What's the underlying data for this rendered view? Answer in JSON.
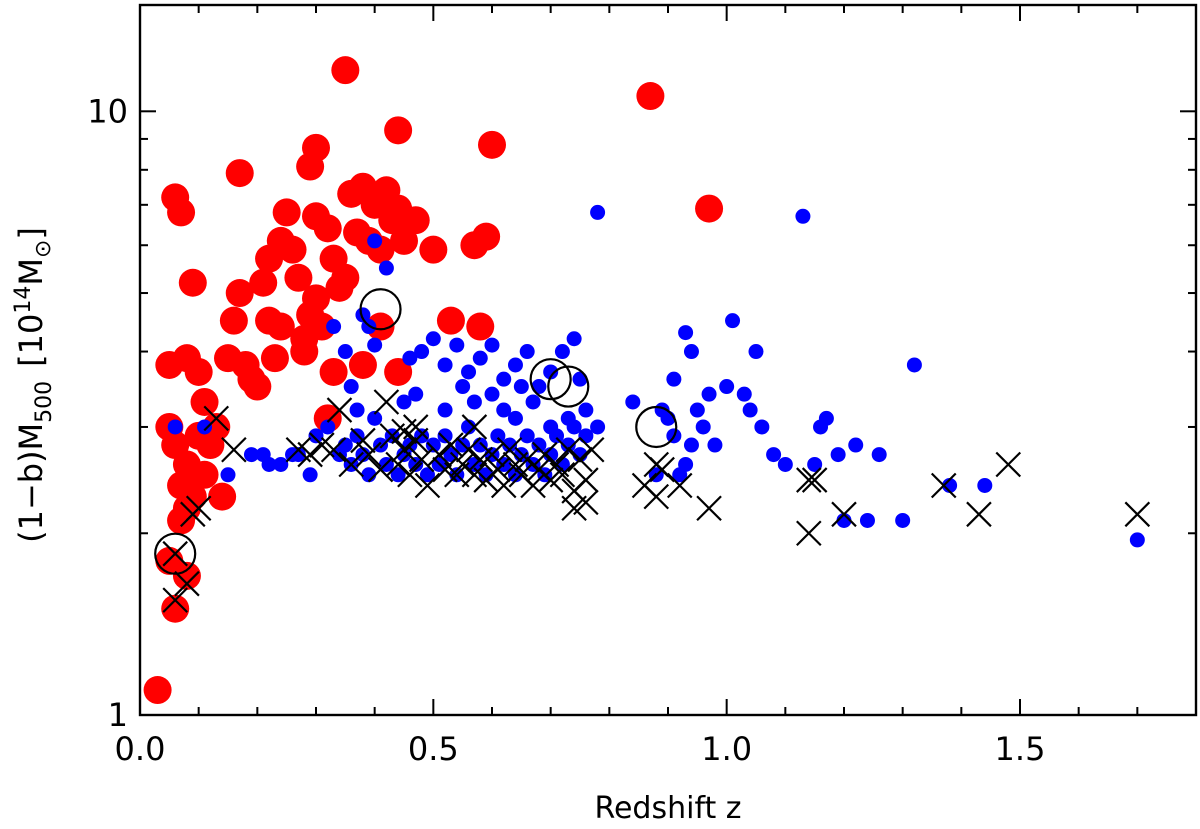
{
  "chart_data": {
    "type": "scatter",
    "title": "",
    "xlabel": "Redshift z",
    "ylabel_prefix": "(1−b)M",
    "ylabel_sub": "500",
    "ylabel_unit_open": "[10",
    "ylabel_unit_sup": "14",
    "ylabel_unit_mid": "M",
    "ylabel_unit_sub": "⊙",
    "ylabel_unit_close": "]",
    "xlim": [
      0.0,
      1.8
    ],
    "ylim": [
      1,
      15
    ],
    "yscale": "log",
    "xticks_major": [
      {
        "value": 0.0,
        "label": "0.0"
      },
      {
        "value": 0.5,
        "label": "0.5"
      },
      {
        "value": 1.0,
        "label": "1.0"
      },
      {
        "value": 1.5,
        "label": "1.5"
      }
    ],
    "yticks_major": [
      {
        "value": 1,
        "label": "1"
      },
      {
        "value": 10,
        "label": "10"
      }
    ],
    "colors": {
      "red": "#ff0000",
      "blue": "#0000ff",
      "black": "#000000"
    },
    "series": [
      {
        "name": "red clusters",
        "color": "#ff0000",
        "marker": "large filled circle",
        "points": [
          [
            0.03,
            1.1
          ],
          [
            0.06,
            7.2
          ],
          [
            0.07,
            6.8
          ],
          [
            0.09,
            5.2
          ],
          [
            0.05,
            3.8
          ],
          [
            0.08,
            3.9
          ],
          [
            0.1,
            3.7
          ],
          [
            0.05,
            3.0
          ],
          [
            0.06,
            2.8
          ],
          [
            0.08,
            2.6
          ],
          [
            0.1,
            2.9
          ],
          [
            0.07,
            2.4
          ],
          [
            0.09,
            2.3
          ],
          [
            0.11,
            2.5
          ],
          [
            0.07,
            2.1
          ],
          [
            0.08,
            2.2
          ],
          [
            0.12,
            2.8
          ],
          [
            0.13,
            3.0
          ],
          [
            0.14,
            2.3
          ],
          [
            0.05,
            1.8
          ],
          [
            0.06,
            1.5
          ],
          [
            0.08,
            1.7
          ],
          [
            0.11,
            3.3
          ],
          [
            0.15,
            3.9
          ],
          [
            0.16,
            4.5
          ],
          [
            0.17,
            5.0
          ],
          [
            0.18,
            3.8
          ],
          [
            0.2,
            3.5
          ],
          [
            0.22,
            4.5
          ],
          [
            0.24,
            4.4
          ],
          [
            0.22,
            5.7
          ],
          [
            0.24,
            6.1
          ],
          [
            0.25,
            6.8
          ],
          [
            0.21,
            5.2
          ],
          [
            0.26,
            5.9
          ],
          [
            0.27,
            5.3
          ],
          [
            0.28,
            4.2
          ],
          [
            0.29,
            4.6
          ],
          [
            0.3,
            4.9
          ],
          [
            0.31,
            4.4
          ],
          [
            0.3,
            6.7
          ],
          [
            0.32,
            6.4
          ],
          [
            0.33,
            5.7
          ],
          [
            0.34,
            5.1
          ],
          [
            0.35,
            5.3
          ],
          [
            0.36,
            7.3
          ],
          [
            0.38,
            7.5
          ],
          [
            0.37,
            6.3
          ],
          [
            0.39,
            6.1
          ],
          [
            0.4,
            7.0
          ],
          [
            0.41,
            5.9
          ],
          [
            0.42,
            7.4
          ],
          [
            0.43,
            6.6
          ],
          [
            0.44,
            6.9
          ],
          [
            0.45,
            6.1
          ],
          [
            0.47,
            6.6
          ],
          [
            0.5,
            5.9
          ],
          [
            0.44,
            9.3
          ],
          [
            0.35,
            11.7
          ],
          [
            0.3,
            8.7
          ],
          [
            0.17,
            7.9
          ],
          [
            0.29,
            8.1
          ],
          [
            0.32,
            3.1
          ],
          [
            0.38,
            3.8
          ],
          [
            0.41,
            4.4
          ],
          [
            0.44,
            3.7
          ],
          [
            0.53,
            4.5
          ],
          [
            0.58,
            4.4
          ],
          [
            0.57,
            6.0
          ],
          [
            0.59,
            6.2
          ],
          [
            0.6,
            8.8
          ],
          [
            0.87,
            10.6
          ],
          [
            0.97,
            6.9
          ],
          [
            0.28,
            4.0
          ],
          [
            0.33,
            3.7
          ],
          [
            0.19,
            3.6
          ],
          [
            0.23,
            3.9
          ]
        ]
      },
      {
        "name": "blue clusters",
        "color": "#0000ff",
        "marker": "small filled circle",
        "points": [
          [
            0.06,
            3.0
          ],
          [
            0.11,
            3.0
          ],
          [
            0.15,
            2.5
          ],
          [
            0.19,
            2.7
          ],
          [
            0.21,
            2.7
          ],
          [
            0.22,
            2.6
          ],
          [
            0.24,
            2.6
          ],
          [
            0.26,
            2.7
          ],
          [
            0.27,
            2.7
          ],
          [
            0.29,
            2.5
          ],
          [
            0.3,
            2.9
          ],
          [
            0.32,
            3.0
          ],
          [
            0.34,
            2.7
          ],
          [
            0.35,
            2.8
          ],
          [
            0.36,
            2.6
          ],
          [
            0.37,
            2.9
          ],
          [
            0.38,
            2.7
          ],
          [
            0.39,
            2.5
          ],
          [
            0.4,
            3.1
          ],
          [
            0.41,
            2.8
          ],
          [
            0.42,
            2.6
          ],
          [
            0.43,
            2.9
          ],
          [
            0.44,
            2.5
          ],
          [
            0.45,
            2.7
          ],
          [
            0.46,
            2.8
          ],
          [
            0.47,
            2.6
          ],
          [
            0.48,
            2.9
          ],
          [
            0.49,
            2.5
          ],
          [
            0.5,
            2.8
          ],
          [
            0.51,
            2.6
          ],
          [
            0.52,
            2.9
          ],
          [
            0.53,
            2.7
          ],
          [
            0.54,
            2.5
          ],
          [
            0.55,
            2.8
          ],
          [
            0.56,
            3.0
          ],
          [
            0.57,
            2.6
          ],
          [
            0.58,
            2.8
          ],
          [
            0.59,
            2.5
          ],
          [
            0.6,
            2.7
          ],
          [
            0.61,
            2.9
          ],
          [
            0.62,
            2.6
          ],
          [
            0.63,
            2.8
          ],
          [
            0.64,
            2.5
          ],
          [
            0.65,
            2.7
          ],
          [
            0.66,
            2.9
          ],
          [
            0.67,
            2.6
          ],
          [
            0.68,
            2.8
          ],
          [
            0.69,
            2.5
          ],
          [
            0.7,
            2.7
          ],
          [
            0.71,
            2.9
          ],
          [
            0.72,
            2.6
          ],
          [
            0.73,
            2.8
          ],
          [
            0.74,
            3.0
          ],
          [
            0.75,
            2.7
          ],
          [
            0.76,
            2.9
          ],
          [
            0.4,
            6.1
          ],
          [
            0.42,
            5.5
          ],
          [
            0.38,
            4.6
          ],
          [
            0.39,
            4.4
          ],
          [
            0.4,
            4.1
          ],
          [
            0.46,
            3.9
          ],
          [
            0.48,
            4.0
          ],
          [
            0.5,
            4.2
          ],
          [
            0.52,
            3.8
          ],
          [
            0.54,
            4.1
          ],
          [
            0.56,
            3.7
          ],
          [
            0.58,
            3.9
          ],
          [
            0.6,
            4.1
          ],
          [
            0.62,
            3.6
          ],
          [
            0.64,
            3.8
          ],
          [
            0.66,
            4.0
          ],
          [
            0.68,
            3.5
          ],
          [
            0.7,
            3.7
          ],
          [
            0.72,
            4.0
          ],
          [
            0.74,
            4.2
          ],
          [
            0.33,
            4.4
          ],
          [
            0.35,
            4.0
          ],
          [
            0.36,
            3.5
          ],
          [
            0.37,
            3.2
          ],
          [
            0.45,
            3.3
          ],
          [
            0.47,
            3.4
          ],
          [
            0.52,
            3.2
          ],
          [
            0.55,
            3.5
          ],
          [
            0.57,
            3.3
          ],
          [
            0.6,
            3.4
          ],
          [
            0.62,
            3.2
          ],
          [
            0.65,
            3.5
          ],
          [
            0.67,
            3.3
          ],
          [
            0.75,
            3.6
          ],
          [
            0.76,
            3.2
          ],
          [
            0.78,
            3.0
          ],
          [
            0.64,
            3.1
          ],
          [
            0.7,
            3.0
          ],
          [
            0.73,
            3.1
          ],
          [
            0.78,
            6.8
          ],
          [
            0.84,
            3.3
          ],
          [
            0.88,
            2.5
          ],
          [
            0.9,
            3.1
          ],
          [
            0.91,
            2.9
          ],
          [
            0.92,
            2.5
          ],
          [
            0.93,
            2.6
          ],
          [
            0.94,
            2.8
          ],
          [
            0.95,
            3.2
          ],
          [
            0.96,
            3.0
          ],
          [
            0.97,
            3.4
          ],
          [
            0.98,
            2.8
          ],
          [
            1.0,
            3.5
          ],
          [
            1.01,
            4.5
          ],
          [
            1.03,
            3.4
          ],
          [
            1.04,
            3.2
          ],
          [
            1.05,
            4.0
          ],
          [
            1.06,
            3.0
          ],
          [
            1.08,
            2.7
          ],
          [
            0.93,
            4.3
          ],
          [
            0.94,
            4.0
          ],
          [
            0.91,
            3.6
          ],
          [
            0.89,
            3.2
          ],
          [
            1.13,
            6.7
          ],
          [
            1.16,
            3.0
          ],
          [
            1.17,
            3.1
          ],
          [
            1.19,
            2.7
          ],
          [
            1.2,
            2.1
          ],
          [
            1.22,
            2.8
          ],
          [
            1.24,
            2.1
          ],
          [
            1.26,
            2.7
          ],
          [
            1.3,
            2.1
          ],
          [
            1.32,
            3.8
          ],
          [
            1.38,
            2.4
          ],
          [
            1.44,
            2.4
          ],
          [
            1.7,
            1.95
          ],
          [
            1.15,
            2.6
          ],
          [
            1.1,
            2.6
          ]
        ]
      },
      {
        "name": "crossed clusters",
        "color": "#000000",
        "marker": "x",
        "points": [
          [
            0.06,
            1.85
          ],
          [
            0.06,
            1.55
          ],
          [
            0.08,
            1.65
          ],
          [
            0.09,
            2.15
          ],
          [
            0.1,
            2.2
          ],
          [
            0.13,
            3.1
          ],
          [
            0.16,
            2.75
          ],
          [
            0.27,
            2.75
          ],
          [
            0.29,
            2.7
          ],
          [
            0.31,
            2.8
          ],
          [
            0.33,
            2.75
          ],
          [
            0.34,
            3.2
          ],
          [
            0.36,
            2.6
          ],
          [
            0.38,
            2.85
          ],
          [
            0.39,
            2.7
          ],
          [
            0.41,
            2.55
          ],
          [
            0.42,
            3.3
          ],
          [
            0.43,
            2.9
          ],
          [
            0.44,
            2.6
          ],
          [
            0.45,
            2.75
          ],
          [
            0.46,
            2.5
          ],
          [
            0.47,
            2.85
          ],
          [
            0.48,
            2.65
          ],
          [
            0.49,
            2.4
          ],
          [
            0.51,
            2.7
          ],
          [
            0.52,
            2.55
          ],
          [
            0.53,
            2.8
          ],
          [
            0.54,
            2.5
          ],
          [
            0.55,
            2.6
          ],
          [
            0.56,
            2.75
          ],
          [
            0.57,
            2.5
          ],
          [
            0.58,
            2.65
          ],
          [
            0.59,
            2.45
          ],
          [
            0.6,
            2.7
          ],
          [
            0.61,
            2.55
          ],
          [
            0.62,
            2.4
          ],
          [
            0.63,
            2.75
          ],
          [
            0.64,
            2.6
          ],
          [
            0.65,
            2.5
          ],
          [
            0.66,
            2.65
          ],
          [
            0.67,
            2.4
          ],
          [
            0.68,
            2.55
          ],
          [
            0.69,
            2.7
          ],
          [
            0.7,
            2.45
          ],
          [
            0.71,
            2.6
          ],
          [
            0.72,
            2.5
          ],
          [
            0.73,
            2.75
          ],
          [
            0.74,
            2.35
          ],
          [
            0.75,
            2.65
          ],
          [
            0.76,
            2.45
          ],
          [
            0.74,
            2.2
          ],
          [
            0.76,
            2.25
          ],
          [
            0.77,
            2.75
          ],
          [
            0.86,
            2.4
          ],
          [
            0.88,
            2.6
          ],
          [
            0.89,
            2.55
          ],
          [
            0.88,
            2.3
          ],
          [
            0.92,
            2.4
          ],
          [
            0.97,
            2.2
          ],
          [
            1.14,
            2.45
          ],
          [
            1.15,
            2.45
          ],
          [
            1.14,
            2.0
          ],
          [
            1.2,
            2.15
          ],
          [
            1.37,
            2.4
          ],
          [
            1.43,
            2.15
          ],
          [
            1.48,
            2.6
          ],
          [
            1.7,
            2.15
          ],
          [
            0.57,
            3.0
          ],
          [
            0.47,
            3.0
          ],
          [
            0.45,
            2.95
          ]
        ]
      },
      {
        "name": "open circles",
        "color": "#000000",
        "marker": "open circle",
        "points": [
          [
            0.41,
            4.7
          ],
          [
            0.7,
            3.6
          ],
          [
            0.73,
            3.5
          ],
          [
            0.88,
            3.0
          ],
          [
            0.06,
            1.85
          ]
        ]
      }
    ]
  }
}
